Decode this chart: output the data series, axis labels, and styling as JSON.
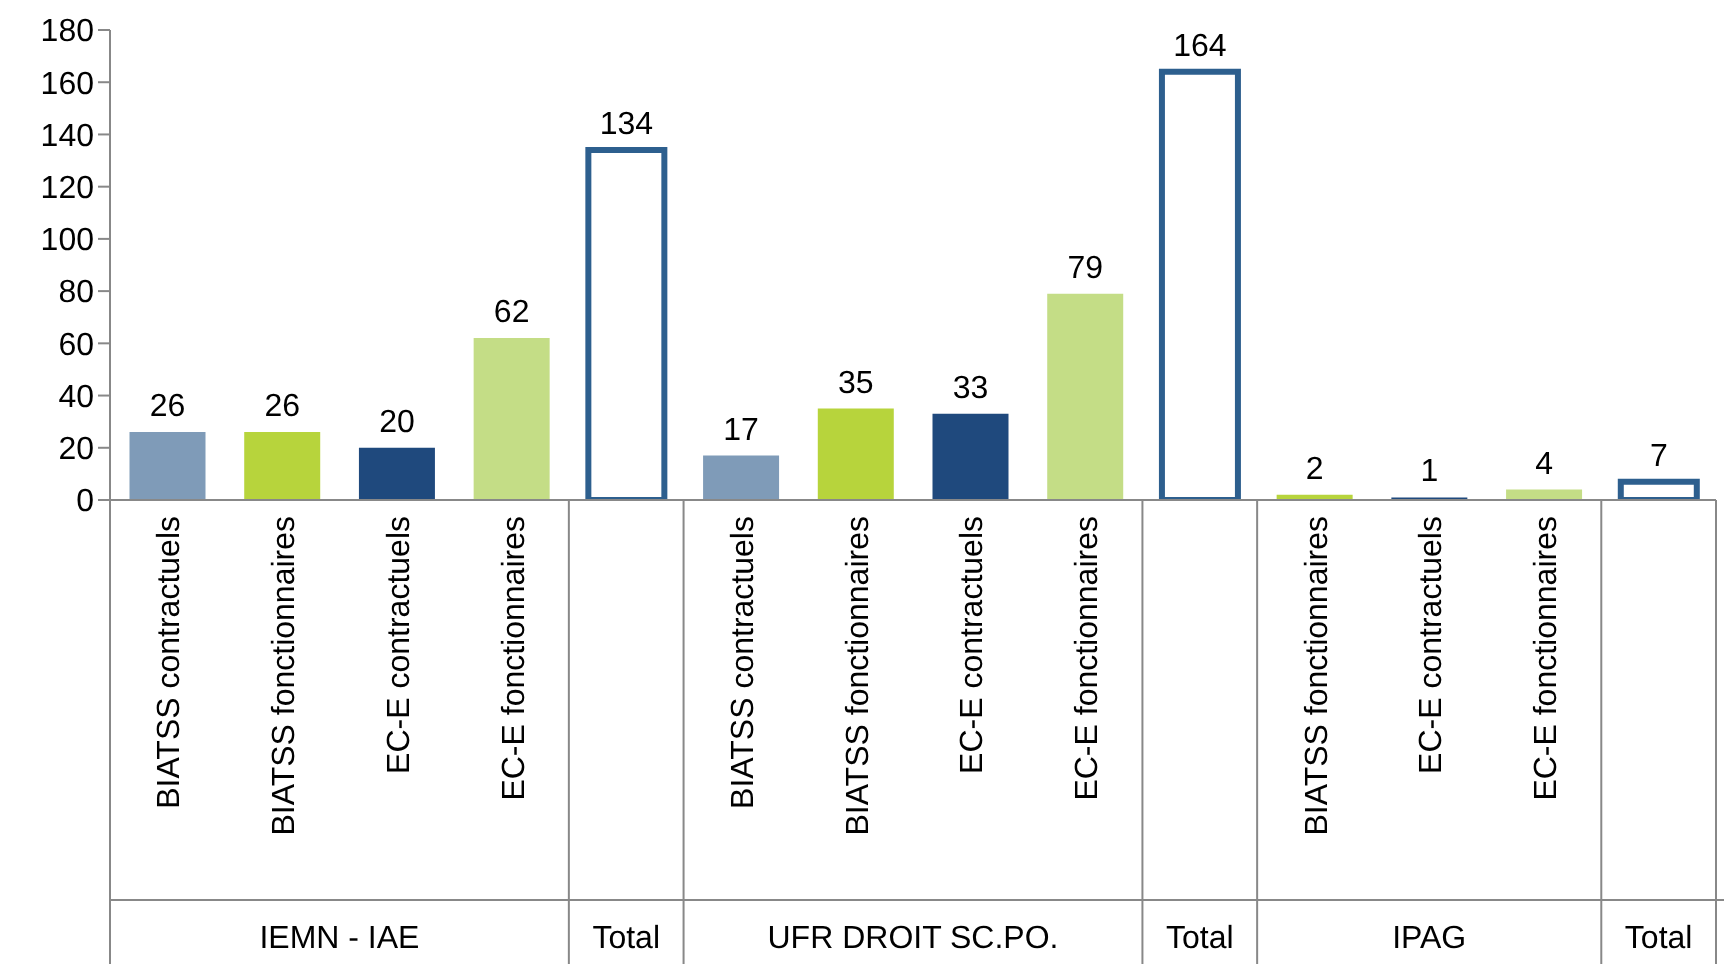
{
  "chart_data": {
    "type": "bar",
    "stacked": true,
    "data_labels": true,
    "categories": [
      "BIATSS contractuels",
      "BIATSS fonctionnaires",
      "EC-E contractuels",
      "EC-E fonctionnaires",
      null,
      "BIATSS contractuels",
      "BIATSS fonctionnaires",
      "EC-E contractuels",
      "EC-E fonctionnaires",
      null,
      "BIATSS fonctionnaires",
      "EC-E contractuels",
      "EC-E fonctionnaires",
      null
    ],
    "series": [
      {
        "values": [
          26,
          26,
          20,
          62,
          null,
          17,
          35,
          33,
          79,
          null,
          2,
          1,
          4,
          null
        ],
        "colors": [
          "#7f9bb8",
          "#b7d43c",
          "#1f497d",
          "#c4dd86",
          null,
          "#7f9bb8",
          "#b7d43c",
          "#1f497d",
          "#c4dd86",
          null,
          "#b7d43c",
          "#1f497d",
          "#c4dd86",
          null
        ]
      },
      {
        "values": [
          null,
          null,
          null,
          null,
          134,
          null,
          null,
          null,
          null,
          164,
          null,
          null,
          null,
          7
        ],
        "color": "#2d5f8e"
      }
    ],
    "annotations": [
      "IEMN - IAE",
      "Total",
      "UFR DROIT SC.PO.",
      "Total",
      "IPAG",
      "Total"
    ],
    "ylim": [
      0,
      180
    ],
    "yticks": [
      0,
      20,
      40,
      60,
      80,
      100,
      120,
      140,
      160,
      180
    ]
  }
}
